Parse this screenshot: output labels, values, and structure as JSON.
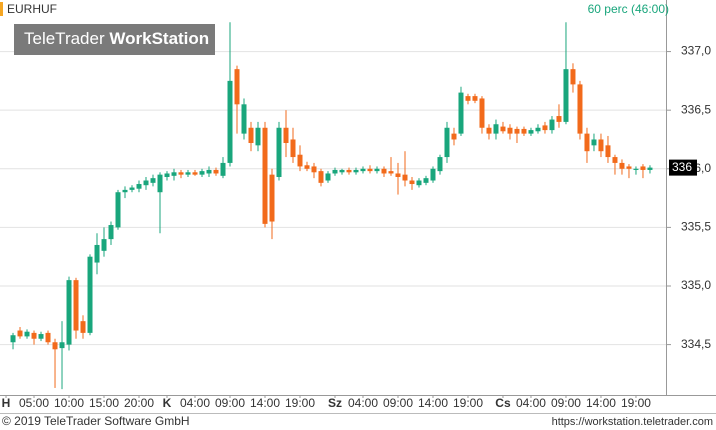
{
  "chart_data": {
    "type": "candlestick",
    "symbol": "EURHUF",
    "period": "60 perc (46:00)",
    "watermark": [
      "TeleTrader",
      "WorkStation"
    ],
    "last_label": "336",
    "footer_left": "© 2019 TeleTrader Software GmbH",
    "footer_right": "https://workstation.teletrader.com",
    "grid": true,
    "up_color": "#19a67c",
    "down_color": "#f26a1b",
    "xlim": [
      -1.86,
      93.29
    ],
    "ylim": [
      334.07,
      337.44
    ],
    "yticks": [
      {
        "value": 334.5,
        "label": "334,5"
      },
      {
        "value": 335,
        "label": "335,0"
      },
      {
        "value": 335.5,
        "label": "335,5"
      },
      {
        "value": 336,
        "label": "336,0"
      },
      {
        "value": 336.5,
        "label": "336,5"
      },
      {
        "value": 337,
        "label": "337,0"
      }
    ],
    "xticks": [
      {
        "value": -1,
        "label": "H"
      },
      {
        "value": 3,
        "label": "05:00"
      },
      {
        "value": 8,
        "label": "10:00"
      },
      {
        "value": 13,
        "label": "15:00"
      },
      {
        "value": 18,
        "label": "20:00"
      },
      {
        "value": 22,
        "label": "K"
      },
      {
        "value": 26,
        "label": "04:00"
      },
      {
        "value": 31,
        "label": "09:00"
      },
      {
        "value": 36,
        "label": "14:00"
      },
      {
        "value": 41,
        "label": "19:00"
      },
      {
        "value": 46,
        "label": "Sz"
      },
      {
        "value": 50,
        "label": "04:00"
      },
      {
        "value": 55,
        "label": "09:00"
      },
      {
        "value": 60,
        "label": "14:00"
      },
      {
        "value": 65,
        "label": "19:00"
      },
      {
        "value": 70,
        "label": "Cs"
      },
      {
        "value": 74,
        "label": "04:00"
      },
      {
        "value": 79,
        "label": "09:00"
      },
      {
        "value": 84,
        "label": "14:00"
      },
      {
        "value": 89,
        "label": "19:00"
      }
    ],
    "open": [
      334.52,
      334.62,
      334.57,
      334.6,
      334.55,
      334.6,
      334.52,
      334.47,
      334.5,
      335.05,
      334.7,
      334.6,
      335.2,
      335.3,
      335.4,
      335.5,
      335.8,
      335.82,
      335.83,
      335.86,
      335.88,
      335.8,
      335.93,
      335.94,
      335.97,
      335.95,
      335.97,
      335.95,
      335.96,
      335.99,
      335.94,
      336.05,
      336.85,
      336.3,
      336.35,
      336.2,
      336.35,
      335.95,
      335.93,
      336.35,
      336.25,
      336.12,
      336.03,
      336.02,
      335.98,
      335.9,
      335.96,
      335.97,
      335.99,
      335.97,
      335.98,
      336.0,
      335.98,
      336.0,
      335.98,
      335.96,
      335.95,
      335.9,
      335.86,
      335.88,
      335.9,
      335.98,
      336.1,
      336.3,
      336.3,
      336.62,
      336.62,
      336.6,
      336.35,
      336.3,
      336.36,
      336.35,
      336.34,
      336.34,
      336.3,
      336.32,
      336.37,
      336.33,
      336.45,
      336.4,
      336.85,
      336.72,
      336.3,
      336.2,
      336.25,
      336.2,
      336.1,
      336.05,
      336.02,
      335.99,
      336.02,
      335.99
    ],
    "high": [
      334.6,
      334.65,
      334.63,
      334.62,
      334.61,
      334.62,
      334.55,
      334.7,
      335.08,
      335.07,
      334.75,
      335.27,
      335.45,
      335.5,
      335.55,
      335.82,
      335.85,
      335.86,
      335.9,
      335.93,
      335.95,
      335.97,
      335.98,
      336.0,
      335.99,
      335.99,
      335.99,
      336.0,
      336.02,
      336.01,
      336.1,
      337.25,
      336.88,
      336.6,
      336.4,
      336.4,
      336.4,
      336.0,
      336.4,
      336.5,
      336.35,
      336.2,
      336.06,
      336.05,
      336.0,
      335.98,
      336.01,
      336.0,
      336.01,
      336.01,
      336.02,
      336.03,
      336.02,
      336.02,
      336.1,
      336.05,
      336.15,
      335.93,
      335.92,
      335.94,
      336.02,
      336.12,
      336.4,
      336.35,
      336.7,
      336.64,
      336.64,
      336.62,
      336.38,
      336.42,
      336.4,
      336.38,
      336.36,
      336.36,
      336.35,
      336.38,
      336.4,
      336.45,
      336.55,
      337.25,
      336.9,
      336.75,
      336.35,
      336.3,
      336.3,
      336.28,
      336.12,
      336.08,
      336.04,
      336.02,
      336.04,
      336.03
    ],
    "low": [
      334.46,
      334.55,
      334.55,
      334.5,
      334.53,
      334.5,
      334.13,
      334.12,
      334.45,
      334.55,
      334.55,
      334.58,
      335.1,
      335.25,
      335.35,
      335.48,
      335.75,
      335.8,
      335.8,
      335.82,
      335.85,
      335.45,
      335.9,
      335.9,
      335.92,
      335.93,
      335.94,
      335.93,
      335.93,
      335.94,
      335.92,
      336.02,
      336.3,
      336.25,
      336.15,
      336.15,
      335.5,
      335.4,
      335.9,
      336.1,
      336.05,
      335.98,
      335.98,
      335.92,
      335.85,
      335.88,
      335.94,
      335.95,
      335.95,
      335.95,
      335.96,
      335.96,
      335.96,
      335.93,
      335.94,
      335.78,
      335.85,
      335.82,
      335.84,
      335.86,
      335.88,
      335.95,
      336.05,
      336.2,
      336.28,
      336.55,
      336.56,
      336.3,
      336.25,
      336.25,
      336.3,
      336.25,
      336.22,
      336.28,
      336.28,
      336.3,
      336.3,
      336.3,
      336.35,
      336.38,
      336.65,
      336.25,
      336.05,
      336.15,
      336.1,
      336.05,
      335.95,
      335.95,
      335.92,
      335.95,
      335.92,
      335.96
    ],
    "close": [
      334.58,
      334.57,
      334.61,
      334.55,
      334.59,
      334.52,
      334.46,
      334.52,
      335.05,
      334.62,
      334.6,
      335.25,
      335.35,
      335.4,
      335.52,
      335.8,
      335.82,
      335.84,
      335.87,
      335.9,
      335.92,
      335.95,
      335.96,
      335.97,
      335.95,
      335.97,
      335.95,
      335.98,
      335.99,
      335.96,
      336.05,
      336.75,
      336.55,
      336.55,
      336.22,
      336.35,
      335.53,
      335.55,
      336.35,
      336.22,
      336.1,
      336.02,
      336.0,
      335.97,
      335.88,
      335.96,
      335.99,
      335.99,
      335.97,
      335.99,
      336.0,
      335.98,
      336.0,
      335.96,
      335.96,
      335.93,
      335.9,
      335.87,
      335.9,
      335.92,
      336.0,
      336.1,
      336.35,
      336.25,
      336.65,
      336.58,
      336.58,
      336.35,
      336.3,
      336.38,
      336.32,
      336.3,
      336.3,
      336.3,
      336.33,
      336.35,
      336.33,
      336.42,
      336.4,
      336.85,
      336.72,
      336.3,
      336.15,
      336.25,
      336.15,
      336.1,
      336.05,
      336.0,
      336.0,
      336.0,
      335.99,
      336.01
    ]
  }
}
